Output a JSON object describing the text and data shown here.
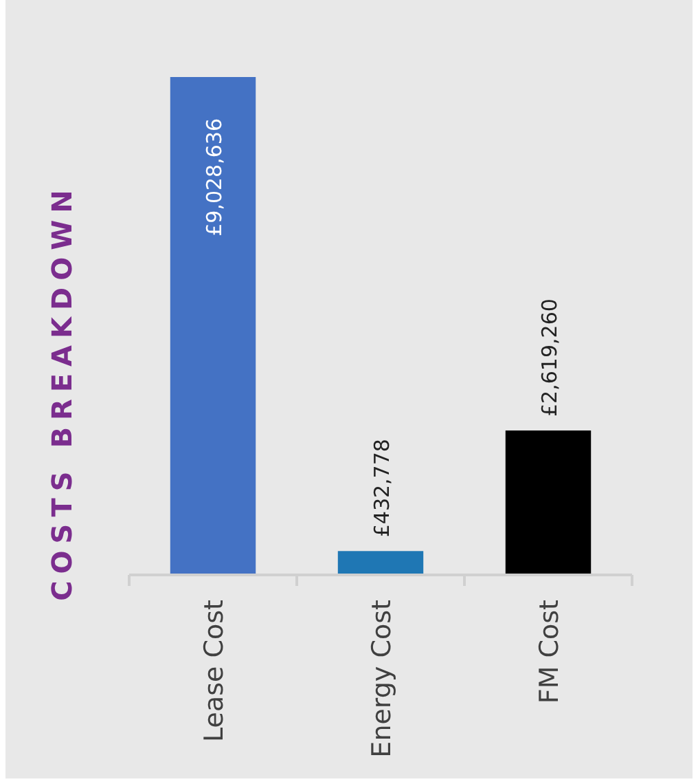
{
  "chart_data": {
    "type": "bar",
    "title": "COSTS BREAKDOWN",
    "categories": [
      "Lease Cost",
      "Energy Cost",
      "FM Cost"
    ],
    "values": [
      9028636,
      432778,
      2619260
    ],
    "colors": [
      "#4472c4",
      "#1f77b4",
      "#000000"
    ],
    "value_labels": [
      "£9,028,636",
      "£432,778",
      "£2,619,260"
    ]
  }
}
